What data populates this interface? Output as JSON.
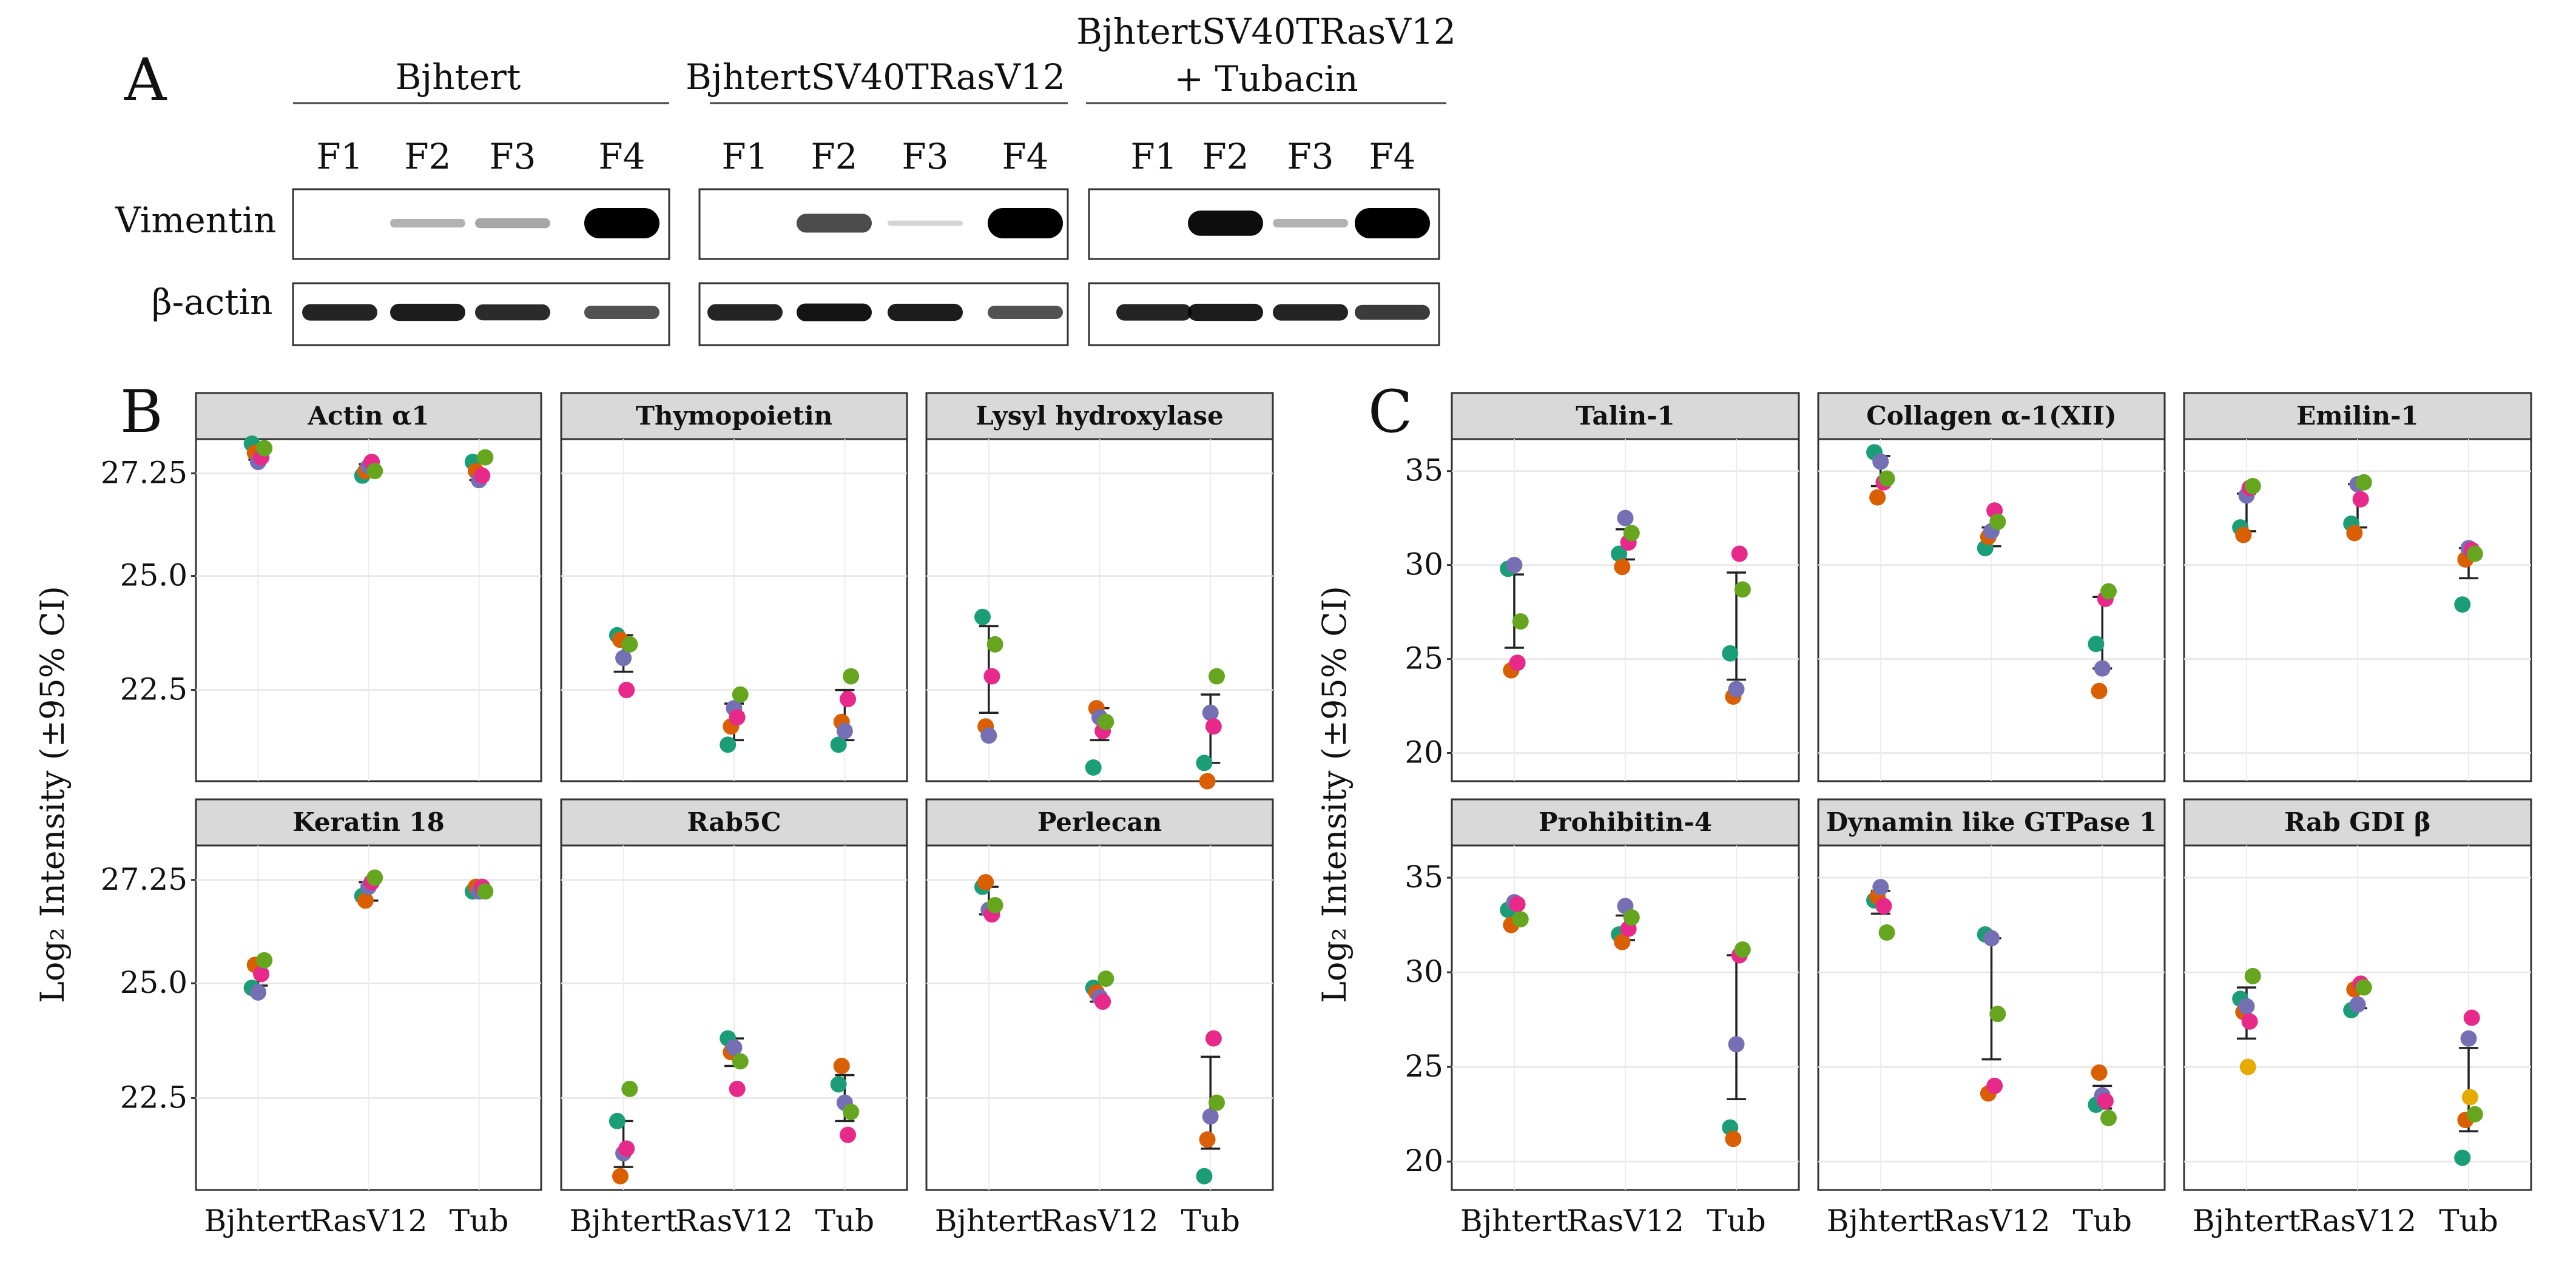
{
  "colors": [
    "#1b9e77",
    "#d95f02",
    "#7570b3",
    "#e7298a",
    "#66a61e",
    "#e6ab02"
  ],
  "panel_a": {
    "letter": "A",
    "groups": [
      {
        "name": "Bjhtert",
        "name2": ""
      },
      {
        "name": "BjhtertSV40TRasV12",
        "name2": ""
      },
      {
        "name": "BjhtertSV40TRasV12",
        "name2": "+ Tubacin"
      }
    ],
    "lanes": [
      "F1",
      "F2",
      "F3",
      "F4"
    ],
    "proteins": [
      "Vimentin",
      "β-actin"
    ],
    "band_intensity": {
      "vimentin": [
        [
          0.0,
          0.15,
          0.2,
          1.0
        ],
        [
          0.0,
          0.55,
          0.02,
          1.0
        ],
        [
          0.0,
          0.8,
          0.15,
          1.0
        ]
      ],
      "actin": [
        [
          0.85,
          0.9,
          0.8,
          0.55
        ],
        [
          0.85,
          0.95,
          0.9,
          0.55
        ],
        [
          0.85,
          0.9,
          0.85,
          0.7
        ]
      ]
    }
  },
  "panel_b": {
    "letter": "B",
    "ylabel": "Log₂ Intensity (±95% CI)"
  },
  "panel_c": {
    "letter": "C",
    "ylabel": "Log₂ Intensity (±95% CI)"
  },
  "chart_data": [
    {
      "type": "scatter",
      "panel": "B",
      "title": "Actin α1",
      "categories": [
        "Bjhtert",
        "RasV12",
        "Tub"
      ],
      "ylim": [
        20.5,
        28.0
      ],
      "yticks": [
        22.5,
        25.0,
        27.25
      ],
      "ytick_labels": [
        "22.5",
        "25.0",
        "27.25"
      ],
      "points": [
        [
          27.9,
          27.7,
          27.5,
          27.6,
          27.8
        ],
        [
          27.2,
          27.3,
          27.4,
          27.5,
          27.3
        ],
        [
          27.5,
          27.3,
          27.1,
          27.2,
          27.6
        ]
      ],
      "ci": [
        [
          27.55,
          27.85
        ],
        [
          27.2,
          27.45
        ],
        [
          27.1,
          27.5
        ]
      ]
    },
    {
      "type": "scatter",
      "panel": "B",
      "title": "Thymopoietin",
      "categories": [
        "Bjhtert",
        "RasV12",
        "Tub"
      ],
      "ylim": [
        20.5,
        28.0
      ],
      "yticks": [
        22.5,
        25.0,
        27.25
      ],
      "ytick_labels": [
        "22.5",
        "25.0",
        "27.25"
      ],
      "points": [
        [
          23.7,
          23.6,
          23.2,
          22.5,
          23.5
        ],
        [
          21.3,
          21.7,
          22.1,
          21.9,
          22.4
        ],
        [
          21.3,
          21.8,
          21.6,
          22.3,
          22.8
        ]
      ],
      "ci": [
        [
          22.9,
          23.7
        ],
        [
          21.4,
          22.2
        ],
        [
          21.4,
          22.5
        ]
      ]
    },
    {
      "type": "scatter",
      "panel": "B",
      "title": "Lysyl hydroxylase",
      "categories": [
        "Bjhtert",
        "RasV12",
        "Tub"
      ],
      "ylim": [
        20.5,
        28.0
      ],
      "yticks": [
        22.5,
        25.0,
        27.25
      ],
      "ytick_labels": [
        "22.5",
        "25.0",
        "27.25"
      ],
      "points": [
        [
          24.1,
          21.7,
          21.5,
          22.8,
          23.5
        ],
        [
          20.8,
          22.1,
          21.9,
          21.6,
          21.8
        ],
        [
          20.9,
          20.5,
          22.0,
          21.7,
          22.8
        ]
      ],
      "ci": [
        [
          22.0,
          23.9
        ],
        [
          21.4,
          22.1
        ],
        [
          20.9,
          22.4
        ]
      ]
    },
    {
      "type": "scatter",
      "panel": "B",
      "title": "Keratin 18",
      "categories": [
        "Bjhtert",
        "RasV12",
        "Tub"
      ],
      "ylim": [
        20.5,
        28.0
      ],
      "yticks": [
        22.5,
        25.0,
        27.25
      ],
      "ytick_labels": [
        "22.5",
        "25.0",
        "27.25"
      ],
      "points": [
        [
          24.9,
          25.4,
          24.8,
          25.2,
          25.5
        ],
        [
          26.9,
          26.8,
          27.1,
          27.2,
          27.3
        ],
        [
          27.0,
          27.1,
          27.0,
          27.1,
          27.0
        ]
      ],
      "ci": [
        [
          24.95,
          25.4
        ],
        [
          26.8,
          27.2
        ],
        [
          26.95,
          27.1
        ]
      ]
    },
    {
      "type": "scatter",
      "panel": "B",
      "title": "Rab5C",
      "categories": [
        "Bjhtert",
        "RasV12",
        "Tub"
      ],
      "ylim": [
        20.5,
        28.0
      ],
      "yticks": [
        22.5,
        25.0,
        27.25
      ],
      "ytick_labels": [
        "22.5",
        "25.0",
        "27.25"
      ],
      "points": [
        [
          22.0,
          20.8,
          21.3,
          21.4,
          22.7
        ],
        [
          23.8,
          23.5,
          23.6,
          22.7,
          23.3
        ],
        [
          22.8,
          23.2,
          22.4,
          21.7,
          22.2
        ]
      ],
      "ci": [
        [
          21.0,
          22.0
        ],
        [
          23.2,
          23.8
        ],
        [
          22.0,
          23.0
        ]
      ]
    },
    {
      "type": "scatter",
      "panel": "B",
      "title": "Perlecan",
      "categories": [
        "Bjhtert",
        "RasV12",
        "Tub"
      ],
      "ylim": [
        20.5,
        28.0
      ],
      "yticks": [
        22.5,
        25.0,
        27.25
      ],
      "ytick_labels": [
        "22.5",
        "25.0",
        "27.25"
      ],
      "points": [
        [
          27.1,
          27.2,
          26.6,
          26.5,
          26.7
        ],
        [
          24.9,
          24.8,
          24.7,
          24.6,
          25.1
        ],
        [
          20.8,
          21.6,
          22.1,
          23.8,
          22.4
        ]
      ],
      "ci": [
        [
          26.5,
          27.1
        ],
        [
          24.6,
          25.0
        ],
        [
          21.4,
          23.4
        ]
      ]
    },
    {
      "type": "scatter",
      "panel": "C",
      "title": "Talin-1",
      "categories": [
        "Bjhtert",
        "RasV12",
        "Tub"
      ],
      "ylim": [
        18.5,
        36.7
      ],
      "yticks": [
        20,
        25,
        30,
        35
      ],
      "ytick_labels": [
        "20",
        "25",
        "30",
        "35"
      ],
      "points": [
        [
          29.8,
          24.4,
          30.0,
          24.8,
          27.0
        ],
        [
          30.6,
          29.9,
          32.5,
          31.2,
          31.7
        ],
        [
          25.3,
          23.0,
          23.4,
          30.6,
          28.7
        ]
      ],
      "ci": [
        [
          25.6,
          29.5
        ],
        [
          30.3,
          31.9
        ],
        [
          23.9,
          29.6
        ]
      ]
    },
    {
      "type": "scatter",
      "panel": "C",
      "title": "Collagen α-1(XII)",
      "categories": [
        "Bjhtert",
        "RasV12",
        "Tub"
      ],
      "ylim": [
        18.5,
        36.7
      ],
      "yticks": [
        20,
        25,
        30,
        35
      ],
      "ytick_labels": [
        "20",
        "25",
        "30",
        "35"
      ],
      "points": [
        [
          36.0,
          33.6,
          35.5,
          34.4,
          34.6
        ],
        [
          30.9,
          31.5,
          31.8,
          32.9,
          32.3
        ],
        [
          25.8,
          23.3,
          24.5,
          28.2,
          28.6
        ]
      ],
      "ci": [
        [
          34.2,
          35.8
        ],
        [
          31.0,
          32.0
        ],
        [
          24.5,
          28.3
        ]
      ]
    },
    {
      "type": "scatter",
      "panel": "C",
      "title": "Emilin-1",
      "categories": [
        "Bjhtert",
        "RasV12",
        "Tub"
      ],
      "ylim": [
        18.5,
        36.7
      ],
      "yticks": [
        20,
        25,
        30,
        35
      ],
      "ytick_labels": [
        "20",
        "25",
        "30",
        "35"
      ],
      "points": [
        [
          32.0,
          31.6,
          33.7,
          34.1,
          34.2
        ],
        [
          32.2,
          31.7,
          34.3,
          33.5,
          34.4
        ],
        [
          27.9,
          30.3,
          30.9,
          30.8,
          30.6
        ]
      ],
      "ci": [
        [
          31.8,
          33.8
        ],
        [
          32.0,
          34.3
        ],
        [
          29.3,
          30.9
        ]
      ]
    },
    {
      "type": "scatter",
      "panel": "C",
      "title": "Prohibitin-4",
      "categories": [
        "Bjhtert",
        "RasV12",
        "Tub"
      ],
      "ylim": [
        18.5,
        36.7
      ],
      "yticks": [
        20,
        25,
        30,
        35
      ],
      "ytick_labels": [
        "20",
        "25",
        "30",
        "35"
      ],
      "points": [
        [
          33.3,
          32.5,
          33.7,
          33.6,
          32.8
        ],
        [
          32.0,
          31.6,
          33.5,
          32.3,
          32.9
        ],
        [
          21.8,
          21.2,
          26.2,
          30.9,
          31.2
        ]
      ],
      "ci": [
        [
          32.5,
          33.5
        ],
        [
          31.7,
          33.0
        ],
        [
          23.3,
          30.9
        ]
      ]
    },
    {
      "type": "scatter",
      "panel": "C",
      "title": "Dynamin like GTPase 1",
      "categories": [
        "Bjhtert",
        "RasV12",
        "Tub"
      ],
      "ylim": [
        18.5,
        36.7
      ],
      "yticks": [
        20,
        25,
        30,
        35
      ],
      "ytick_labels": [
        "20",
        "25",
        "30",
        "35"
      ],
      "points": [
        [
          33.8,
          34.0,
          34.5,
          33.5,
          32.1
        ],
        [
          32.0,
          23.6,
          31.8,
          24.0,
          27.8
        ],
        [
          23.0,
          24.7,
          23.5,
          23.2,
          22.3
        ]
      ],
      "ci": [
        [
          33.1,
          34.3
        ],
        [
          25.4,
          31.8
        ],
        [
          22.8,
          24.0
        ]
      ]
    },
    {
      "type": "scatter",
      "panel": "C",
      "title": "Rab GDI β",
      "categories": [
        "Bjhtert",
        "RasV12",
        "Tub"
      ],
      "ylim": [
        18.5,
        36.7
      ],
      "yticks": [
        20,
        25,
        30,
        35
      ],
      "ytick_labels": [
        "20",
        "25",
        "30",
        "35"
      ],
      "points": [
        [
          28.6,
          27.9,
          28.2,
          27.4,
          29.8,
          25.0
        ],
        [
          28.0,
          29.1,
          28.3,
          29.4,
          29.2
        ],
        [
          20.2,
          22.2,
          26.5,
          27.6,
          22.5,
          23.4
        ]
      ],
      "ci": [
        [
          26.5,
          29.2
        ],
        [
          28.1,
          29.2
        ],
        [
          21.6,
          26.0
        ]
      ]
    }
  ]
}
